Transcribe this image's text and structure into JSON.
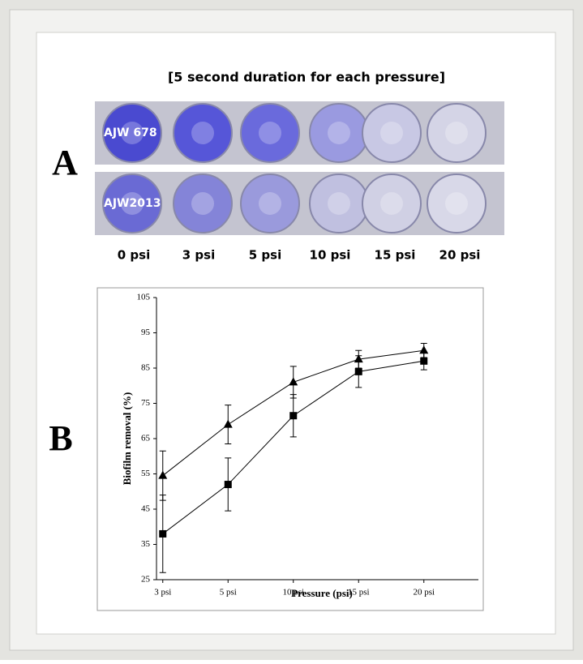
{
  "header": {
    "title": "[5 second duration for each pressure]",
    "panel_a_label": "A",
    "panel_b_label": "B"
  },
  "plate": {
    "strains": [
      "AJW 678",
      "AJW2013"
    ],
    "pressures": [
      "0 psi",
      "3 psi",
      "5 psi",
      "10 psi",
      "15 psi",
      "20 psi"
    ]
  },
  "chart_data": {
    "type": "line",
    "xlabel": "Pressure (psi)",
    "ylabel": "Biofilm removal (%)",
    "categories": [
      "3 psi",
      "5 psi",
      "10 psi",
      "15 psi",
      "20 psi"
    ],
    "series": [
      {
        "color": "#000000",
        "marker": "triangle",
        "values": [
          54.5,
          69,
          81,
          87.5,
          90
        ],
        "errors": [
          7,
          5.5,
          4.5,
          2.5,
          2
        ]
      },
      {
        "color": "#000000",
        "marker": "square",
        "values": [
          38,
          52,
          71.5,
          84,
          87
        ],
        "errors": [
          11,
          7.5,
          6,
          4.5,
          2.5
        ]
      }
    ],
    "ylim": [
      25,
      105
    ],
    "yticks": [
      25,
      35,
      45,
      55,
      65,
      75,
      85,
      95,
      105
    ]
  }
}
